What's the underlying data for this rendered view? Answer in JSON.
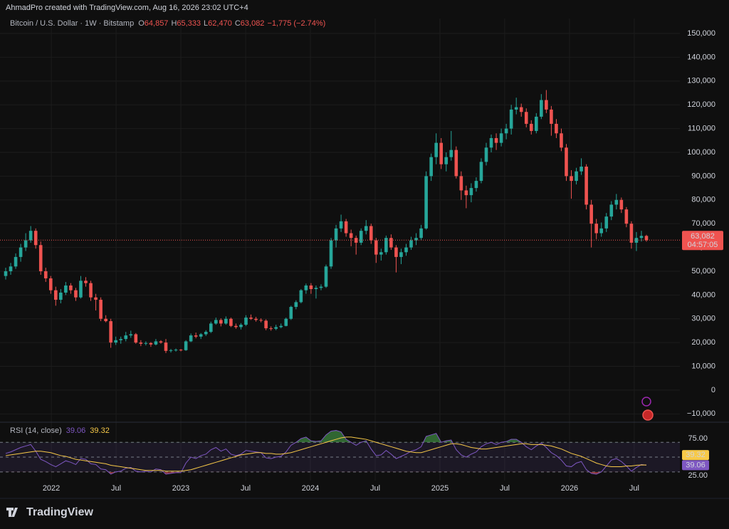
{
  "header": {
    "text": "AhmadPro created with TradingView.com, Aug 16, 2026 23:02 UTC+4"
  },
  "footer": {
    "logo": "TradingView"
  },
  "chart_data": [
    {
      "type": "candlestick",
      "title": "Bitcoin / U.S. Dollar · 1W · Bitstamp",
      "legend_ohlc": [
        {
          "key": "O",
          "value": 64857,
          "label": "64,857"
        },
        {
          "key": "H",
          "value": 65333,
          "label": "65,333"
        },
        {
          "key": "L",
          "value": 62470,
          "label": "62,470"
        },
        {
          "key": "C",
          "value": 63082,
          "label": "63,082"
        }
      ],
      "change": {
        "value": -1775,
        "label": "−1,775"
      },
      "change_pct": {
        "value": -2.74,
        "label": "(−2.74%)"
      },
      "up_color": "#26a69a",
      "down_color": "#ef5350",
      "grid": true,
      "ylim": [
        -13200,
        155100
      ],
      "yticks": [
        {
          "value": 150000,
          "label": "150,000"
        },
        {
          "value": 140000,
          "label": "140,000"
        },
        {
          "value": 130000,
          "label": "130,000"
        },
        {
          "value": 120000,
          "label": "120,000"
        },
        {
          "value": 110000,
          "label": "110,000"
        },
        {
          "value": 100000,
          "label": "100,000"
        },
        {
          "value": 90000,
          "label": "90,000"
        },
        {
          "value": 80000,
          "label": "80,000"
        },
        {
          "value": 70000,
          "label": "70,000"
        },
        {
          "value": 60000,
          "label": "60,000"
        },
        {
          "value": 50000,
          "label": "50,000"
        },
        {
          "value": 40000,
          "label": "40,000"
        },
        {
          "value": 30000,
          "label": "30,000"
        },
        {
          "value": 20000,
          "label": "20,000"
        },
        {
          "value": 10000,
          "label": "10,000"
        },
        0,
        {
          "value": -10000,
          "label": "−10,000"
        }
      ],
      "xlim": [
        2021.604,
        2026.852
      ],
      "xticks": [
        {
          "value": 2022,
          "label": "2022"
        },
        {
          "value": 2022.5,
          "label": "Jul"
        },
        {
          "value": 2023,
          "label": "2023"
        },
        {
          "value": 2023.5,
          "label": "Jul"
        },
        {
          "value": 2024,
          "label": "2024"
        },
        {
          "value": 2024.5,
          "label": "Jul"
        },
        {
          "value": 2025,
          "label": "2025"
        },
        {
          "value": 2025.5,
          "label": "Jul"
        },
        {
          "value": 2026,
          "label": "2026"
        },
        {
          "value": 2026.5,
          "label": "Jul"
        }
      ],
      "last_price": {
        "value": 63082,
        "label": "63,082"
      },
      "countdown": "04:57:05",
      "candles": [
        [
          48000,
          51500,
          46500,
          50000
        ],
        [
          50000,
          53500,
          48500,
          52000
        ],
        [
          52000,
          57500,
          51000,
          56000
        ],
        [
          56000,
          61500,
          54000,
          60000
        ],
        [
          60000,
          66000,
          58500,
          63000
        ],
        [
          63000,
          69000,
          62000,
          67000
        ],
        [
          67000,
          68000,
          59500,
          61000
        ],
        [
          61000,
          62500,
          48500,
          50000
        ],
        [
          50000,
          51500,
          45500,
          47000
        ],
        [
          47000,
          48000,
          40500,
          42000
        ],
        [
          42000,
          43500,
          35500,
          38000
        ],
        [
          38000,
          42500,
          36500,
          41000
        ],
        [
          41000,
          45500,
          40000,
          44000
        ],
        [
          44000,
          45000,
          40500,
          42000
        ],
        [
          42000,
          43000,
          37500,
          39000
        ],
        [
          39000,
          48000,
          38500,
          46000
        ],
        [
          46000,
          47500,
          43500,
          45000
        ],
        [
          45000,
          46000,
          37500,
          39000
        ],
        [
          39000,
          40500,
          33500,
          38000
        ],
        [
          38000,
          39000,
          29000,
          30000
        ],
        [
          30000,
          31500,
          28500,
          29000
        ],
        [
          29000,
          30000,
          17800,
          20000
        ],
        [
          20000,
          22500,
          19000,
          21000
        ],
        [
          21000,
          22500,
          19500,
          21500
        ],
        [
          21500,
          24500,
          20500,
          23000
        ],
        [
          23000,
          25000,
          22000,
          23500
        ],
        [
          23500,
          24000,
          19500,
          20000
        ],
        [
          20000,
          21000,
          18500,
          19500
        ],
        [
          19500,
          20500,
          18800,
          19800
        ],
        [
          19800,
          20200,
          18200,
          19200
        ],
        [
          19200,
          21500,
          18800,
          20500
        ],
        [
          20500,
          21000,
          19500,
          20000
        ],
        [
          20000,
          21500,
          15600,
          16500
        ],
        [
          16500,
          17300,
          15800,
          16800
        ],
        [
          16800,
          17500,
          16200,
          17000
        ],
        [
          17000,
          17300,
          16300,
          16800
        ],
        [
          16800,
          21000,
          16500,
          20500
        ],
        [
          20500,
          23800,
          20200,
          23000
        ],
        [
          23000,
          24200,
          21800,
          22500
        ],
        [
          22500,
          24000,
          21500,
          23500
        ],
        [
          23500,
          25200,
          22800,
          24500
        ],
        [
          24500,
          28800,
          24000,
          28000
        ],
        [
          28000,
          30500,
          27500,
          29500
        ],
        [
          29500,
          30200,
          26800,
          28000
        ],
        [
          28000,
          31000,
          27500,
          30000
        ],
        [
          30000,
          30500,
          26500,
          27000
        ],
        [
          27000,
          28000,
          25800,
          26500
        ],
        [
          26500,
          28200,
          25500,
          27500
        ],
        [
          27500,
          31500,
          27000,
          30500
        ],
        [
          30500,
          31800,
          29500,
          30000
        ],
        [
          30000,
          30800,
          28800,
          29500
        ],
        [
          29500,
          30200,
          28500,
          29200
        ],
        [
          29200,
          29800,
          25200,
          26000
        ],
        [
          26000,
          26800,
          25000,
          25800
        ],
        [
          25800,
          27500,
          25200,
          26500
        ],
        [
          26500,
          28000,
          26000,
          27000
        ],
        [
          27000,
          30500,
          26800,
          30000
        ],
        [
          30000,
          35500,
          29500,
          35000
        ],
        [
          35000,
          37800,
          34000,
          37000
        ],
        [
          37000,
          42500,
          36500,
          42000
        ],
        [
          42000,
          44800,
          40500,
          44000
        ],
        [
          44000,
          45000,
          40500,
          42500
        ],
        [
          42500,
          44000,
          38500,
          43000
        ],
        [
          43000,
          44500,
          42000,
          43500
        ],
        [
          43500,
          52800,
          43000,
          52000
        ],
        [
          52000,
          64000,
          51000,
          63000
        ],
        [
          63000,
          69500,
          60000,
          68000
        ],
        [
          68000,
          73800,
          66500,
          71000
        ],
        [
          71000,
          72000,
          64500,
          66000
        ],
        [
          66000,
          67500,
          60500,
          64000
        ],
        [
          64000,
          65000,
          57000,
          62000
        ],
        [
          62000,
          68000,
          61000,
          67000
        ],
        [
          67000,
          71500,
          65500,
          69000
        ],
        [
          69000,
          70000,
          61500,
          63000
        ],
        [
          63000,
          64000,
          53500,
          57000
        ],
        [
          57000,
          59500,
          54500,
          58000
        ],
        [
          58000,
          65000,
          57000,
          64000
        ],
        [
          64000,
          65500,
          59000,
          60000
        ],
        [
          60000,
          61000,
          49500,
          56000
        ],
        [
          56000,
          59500,
          53000,
          58000
        ],
        [
          58000,
          61500,
          56500,
          60000
        ],
        [
          60000,
          64500,
          59000,
          63000
        ],
        [
          63000,
          66000,
          61000,
          64000
        ],
        [
          64000,
          69500,
          63000,
          68000
        ],
        [
          68000,
          92000,
          67500,
          90000
        ],
        [
          90000,
          99500,
          88000,
          98000
        ],
        [
          98000,
          108000,
          95000,
          104000
        ],
        [
          104000,
          106000,
          93000,
          95000
        ],
        [
          95000,
          100000,
          92000,
          98000
        ],
        [
          98000,
          109000,
          96500,
          101000
        ],
        [
          101000,
          102500,
          89000,
          90000
        ],
        [
          90000,
          92000,
          80000,
          84000
        ],
        [
          84000,
          86000,
          76500,
          82000
        ],
        [
          82000,
          87000,
          79000,
          85000
        ],
        [
          85000,
          89500,
          83500,
          88000
        ],
        [
          88000,
          97500,
          87000,
          96000
        ],
        [
          96000,
          104000,
          94500,
          102000
        ],
        [
          102000,
          107500,
          100000,
          106000
        ],
        [
          106000,
          108000,
          101000,
          104000
        ],
        [
          104000,
          110000,
          102500,
          108000
        ],
        [
          108000,
          112000,
          105500,
          110000
        ],
        [
          110000,
          120000,
          107500,
          118000
        ],
        [
          118000,
          123000,
          116000,
          119000
        ],
        [
          119000,
          120500,
          115000,
          117000
        ],
        [
          117000,
          118500,
          110500,
          112000
        ],
        [
          112000,
          113500,
          107500,
          109000
        ],
        [
          109000,
          116500,
          108000,
          115000
        ],
        [
          115000,
          124500,
          114000,
          122000
        ],
        [
          122000,
          126200,
          116500,
          118000
        ],
        [
          118000,
          119500,
          107000,
          112000
        ],
        [
          112000,
          114000,
          106000,
          108000
        ],
        [
          108000,
          110000,
          100500,
          102000
        ],
        [
          102000,
          103500,
          88000,
          90000
        ],
        [
          90000,
          92500,
          80500,
          88000
        ],
        [
          88000,
          93500,
          86500,
          92000
        ],
        [
          92000,
          97500,
          90500,
          94000
        ],
        [
          94000,
          95000,
          76000,
          78000
        ],
        [
          78000,
          80000,
          60000,
          70000
        ],
        [
          70000,
          72000,
          63500,
          66000
        ],
        [
          66000,
          70500,
          64500,
          68000
        ],
        [
          68000,
          74500,
          66500,
          73000
        ],
        [
          73000,
          79500,
          71500,
          78000
        ],
        [
          78000,
          82500,
          76000,
          80000
        ],
        [
          80000,
          81000,
          74500,
          76000
        ],
        [
          76000,
          77000,
          68500,
          70000
        ],
        [
          70000,
          71000,
          59500,
          62000
        ],
        [
          62000,
          66500,
          58500,
          64000
        ],
        [
          64000,
          67000,
          62500,
          64857
        ],
        [
          64857,
          65333,
          62470,
          63082
        ]
      ]
    },
    {
      "type": "line",
      "title": "RSI (14, close)",
      "ylim": [
        18.3,
        95.2
      ],
      "yticks": [
        {
          "value": 75,
          "label": "75.00"
        },
        {
          "value": 25,
          "label": "25.00"
        }
      ],
      "bands": {
        "upper": 70,
        "middle": 50,
        "lower": 30
      },
      "series": [
        {
          "color": "#7e57c2",
          "values": [
            55,
            57,
            60,
            63,
            65,
            67,
            58,
            47,
            44,
            40,
            37,
            41,
            45,
            43,
            40,
            48,
            47,
            41,
            40,
            34,
            33,
            27,
            30,
            31,
            35,
            36,
            31,
            30,
            31,
            30,
            34,
            33,
            27,
            28,
            29,
            29,
            42,
            50,
            48,
            52,
            54,
            60,
            63,
            58,
            61,
            54,
            52,
            54,
            59,
            58,
            57,
            56,
            49,
            48,
            50,
            51,
            57,
            66,
            70,
            75,
            77,
            72,
            71,
            72,
            80,
            85,
            86,
            84,
            74,
            70,
            66,
            70,
            72,
            61,
            52,
            53,
            59,
            54,
            48,
            51,
            54,
            58,
            60,
            64,
            78,
            80,
            82,
            70,
            72,
            73,
            60,
            53,
            50,
            54,
            57,
            64,
            68,
            70,
            67,
            70,
            71,
            74,
            74,
            70,
            64,
            60,
            65,
            69,
            63,
            56,
            52,
            46,
            38,
            37,
            42,
            44,
            33,
            28,
            27,
            30,
            38,
            46,
            48,
            44,
            38,
            31,
            36,
            40,
            39.06
          ]
        },
        {
          "color": "#f7c948",
          "values": [
            52,
            53,
            54,
            55,
            56,
            57,
            58,
            58,
            57,
            56,
            54,
            52,
            51,
            49,
            47,
            46,
            45,
            44,
            43,
            42,
            41,
            39,
            38,
            37,
            36,
            35,
            34,
            33,
            32,
            32,
            32,
            32,
            31,
            31,
            31,
            31,
            32,
            33,
            35,
            37,
            39,
            41,
            43,
            45,
            47,
            49,
            51,
            53,
            54,
            55,
            56,
            56,
            55,
            55,
            54,
            54,
            55,
            56,
            58,
            60,
            62,
            64,
            66,
            68,
            70,
            72,
            74,
            76,
            77,
            77,
            76,
            75,
            74,
            72,
            70,
            68,
            66,
            64,
            62,
            60,
            58,
            57,
            56,
            56,
            58,
            60,
            62,
            64,
            66,
            68,
            68,
            67,
            65,
            63,
            62,
            61,
            61,
            62,
            63,
            64,
            65,
            66,
            67,
            68,
            68,
            67,
            67,
            67,
            66,
            65,
            63,
            61,
            58,
            55,
            53,
            51,
            48,
            45,
            42,
            40,
            38,
            37,
            37,
            37,
            38,
            38,
            39,
            39.5,
            39.32
          ]
        }
      ]
    }
  ]
}
